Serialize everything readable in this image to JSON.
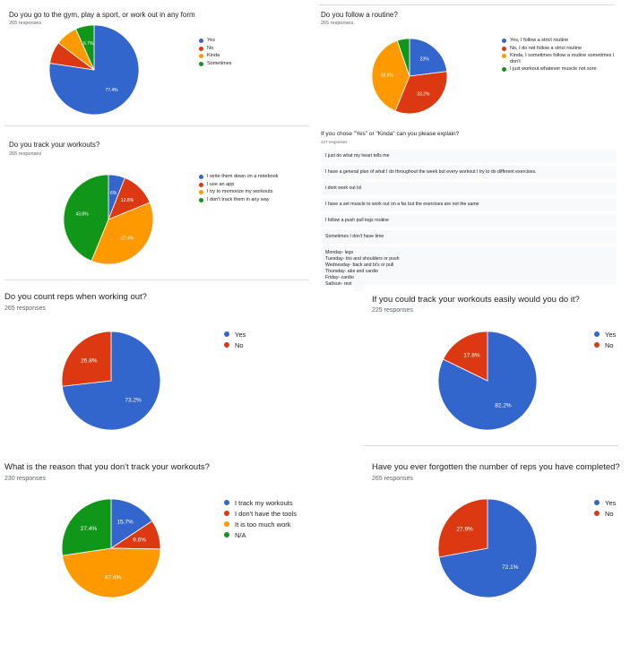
{
  "colors": {
    "blue": "#3366cc",
    "red": "#dc3912",
    "orange": "#ff9900",
    "green": "#109618"
  },
  "chart_data": [
    {
      "type": "pie",
      "title": "Do you go to the gym, play a sport, or work out in any form",
      "responses": "265 responses",
      "categories": [
        "Yes",
        "No",
        "Kinda",
        "Sometimes"
      ],
      "values": [
        77.4,
        7.9,
        8.0,
        6.7
      ],
      "labels": [
        "77.4%",
        "",
        "",
        "6.7%"
      ]
    },
    {
      "type": "pie",
      "title": "Do you follow a routine?",
      "responses": "265 responses",
      "categories": [
        "Yes, I follow a strict routine",
        "No, I do not follow a strict routine",
        "Kinda, I sometimes follow a routine sometimes I don't",
        "I just workout whatever muscle not sore"
      ],
      "values": [
        23,
        33.2,
        38.5,
        5.3
      ],
      "labels": [
        "23%",
        "33.2%",
        "38.5%",
        ""
      ]
    },
    {
      "type": "pie",
      "title": "Do you track your workouts?",
      "responses": "265 responses",
      "categories": [
        "I write them down on a notebook",
        "I use an app",
        "I try to memorize my workouts",
        "I don't track them in any way"
      ],
      "values": [
        6,
        12.8,
        37.4,
        43.8
      ],
      "labels": [
        "6%",
        "12.8%",
        "37.4%",
        "43.8%"
      ]
    },
    {
      "type": "pie",
      "title": "Do you count reps when working out?",
      "responses": "265 responses",
      "categories": [
        "Yes",
        "No"
      ],
      "values": [
        73.2,
        26.8
      ],
      "labels": [
        "73.2%",
        "26.8%"
      ]
    },
    {
      "type": "pie",
      "title": "If you could track your workouts easily would you do it?",
      "responses": "225 responses",
      "categories": [
        "Yes",
        "No"
      ],
      "values": [
        82.2,
        17.8
      ],
      "labels": [
        "82.2%",
        "17.8%"
      ]
    },
    {
      "type": "pie",
      "title": "What is the reason that you don't track your workouts?",
      "responses": "230 responses",
      "categories": [
        "I track my workouts",
        "I don't have the tools",
        "It is too much work",
        "N/A"
      ],
      "values": [
        15.7,
        9.6,
        47.4,
        27.4
      ],
      "labels": [
        "15.7%",
        "9.6%",
        "47.4%",
        "27.4%"
      ]
    },
    {
      "type": "pie",
      "title": "Have you ever forgotten the number of reps you have completed?",
      "responses": "265 responses",
      "categories": [
        "Yes",
        "No"
      ],
      "values": [
        72.1,
        27.9
      ],
      "labels": [
        "72.1%",
        "27.9%"
      ]
    }
  ],
  "explain": {
    "title": "If you chose \"Yes\" or \"Kinda\" can you please explain?",
    "responses": "127 responses",
    "rows": [
      "I just do what my heart tells me",
      "I have a general plan of what I do throughout the week but every workout I try to do different exercises.",
      "i dont work out lol",
      "I have a set muscle to work out on a far but the exercises are not the same",
      "I follow a push pull legs routine",
      "Sometimes I don't have time",
      "Monday- legs\nTuesday- tris and shoulders or push\nWednesday- back and bi's or pull\nThursday- abs and cardio\nFriday- cardio\nSat/sun- rest"
    ]
  }
}
